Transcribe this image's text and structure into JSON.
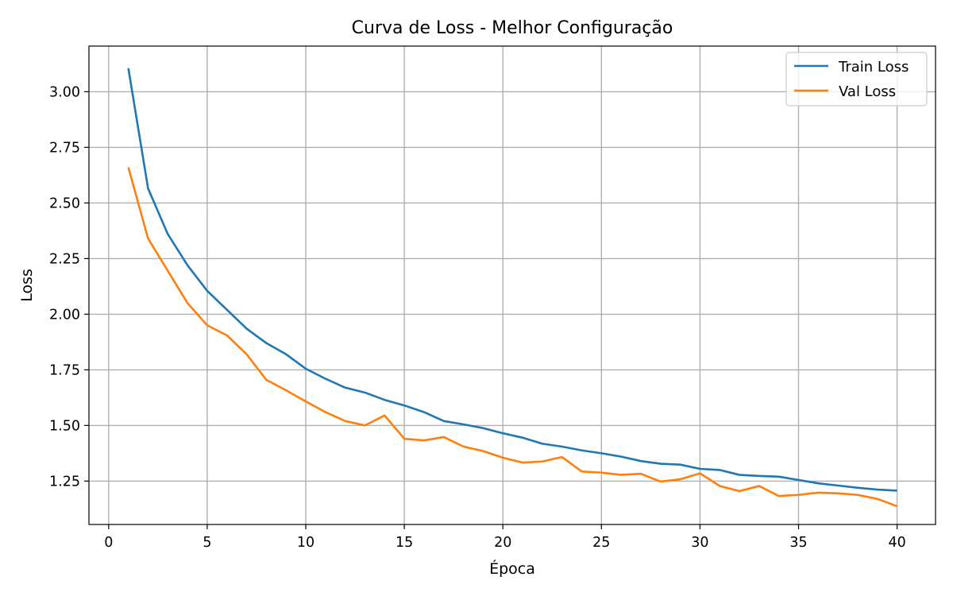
{
  "chart_data": {
    "type": "line",
    "title": "Curva de Loss - Melhor Configuração",
    "xlabel": "Época",
    "ylabel": "Loss",
    "xlim": [
      -1,
      41.95
    ],
    "ylim": [
      1.055,
      3.205
    ],
    "xticks": [
      0,
      5,
      10,
      15,
      20,
      25,
      30,
      35,
      40
    ],
    "yticks": [
      1.25,
      1.5,
      1.75,
      2.0,
      2.25,
      2.5,
      2.75,
      3.0
    ],
    "ytick_labels": [
      "1.25",
      "1.50",
      "1.75",
      "2.00",
      "2.25",
      "2.50",
      "2.75",
      "3.00"
    ],
    "grid": true,
    "legend_position": "top-right",
    "x": [
      1,
      2,
      3,
      4,
      5,
      6,
      7,
      8,
      9,
      10,
      11,
      12,
      13,
      14,
      15,
      16,
      17,
      18,
      19,
      20,
      21,
      22,
      23,
      24,
      25,
      26,
      27,
      28,
      29,
      30,
      31,
      32,
      33,
      34,
      35,
      36,
      37,
      38,
      39,
      40
    ],
    "series": [
      {
        "name": "Train Loss",
        "color": "#1f77b4",
        "values": [
          3.105,
          2.565,
          2.36,
          2.22,
          2.105,
          2.02,
          1.935,
          1.87,
          1.82,
          1.755,
          1.71,
          1.67,
          1.648,
          1.615,
          1.59,
          1.56,
          1.52,
          1.505,
          1.488,
          1.465,
          1.445,
          1.418,
          1.405,
          1.388,
          1.375,
          1.36,
          1.34,
          1.328,
          1.324,
          1.305,
          1.3,
          1.278,
          1.273,
          1.27,
          1.255,
          1.24,
          1.23,
          1.22,
          1.212,
          1.207
        ]
      },
      {
        "name": "Val Loss",
        "color": "#ff7f0e",
        "values": [
          2.66,
          2.34,
          2.195,
          2.05,
          1.95,
          1.905,
          1.82,
          1.705,
          1.658,
          1.608,
          1.56,
          1.52,
          1.5,
          1.545,
          1.44,
          1.433,
          1.448,
          1.405,
          1.385,
          1.355,
          1.333,
          1.338,
          1.358,
          1.293,
          1.288,
          1.278,
          1.283,
          1.248,
          1.258,
          1.285,
          1.228,
          1.205,
          1.228,
          1.183,
          1.188,
          1.198,
          1.195,
          1.188,
          1.17,
          1.137
        ]
      }
    ]
  }
}
